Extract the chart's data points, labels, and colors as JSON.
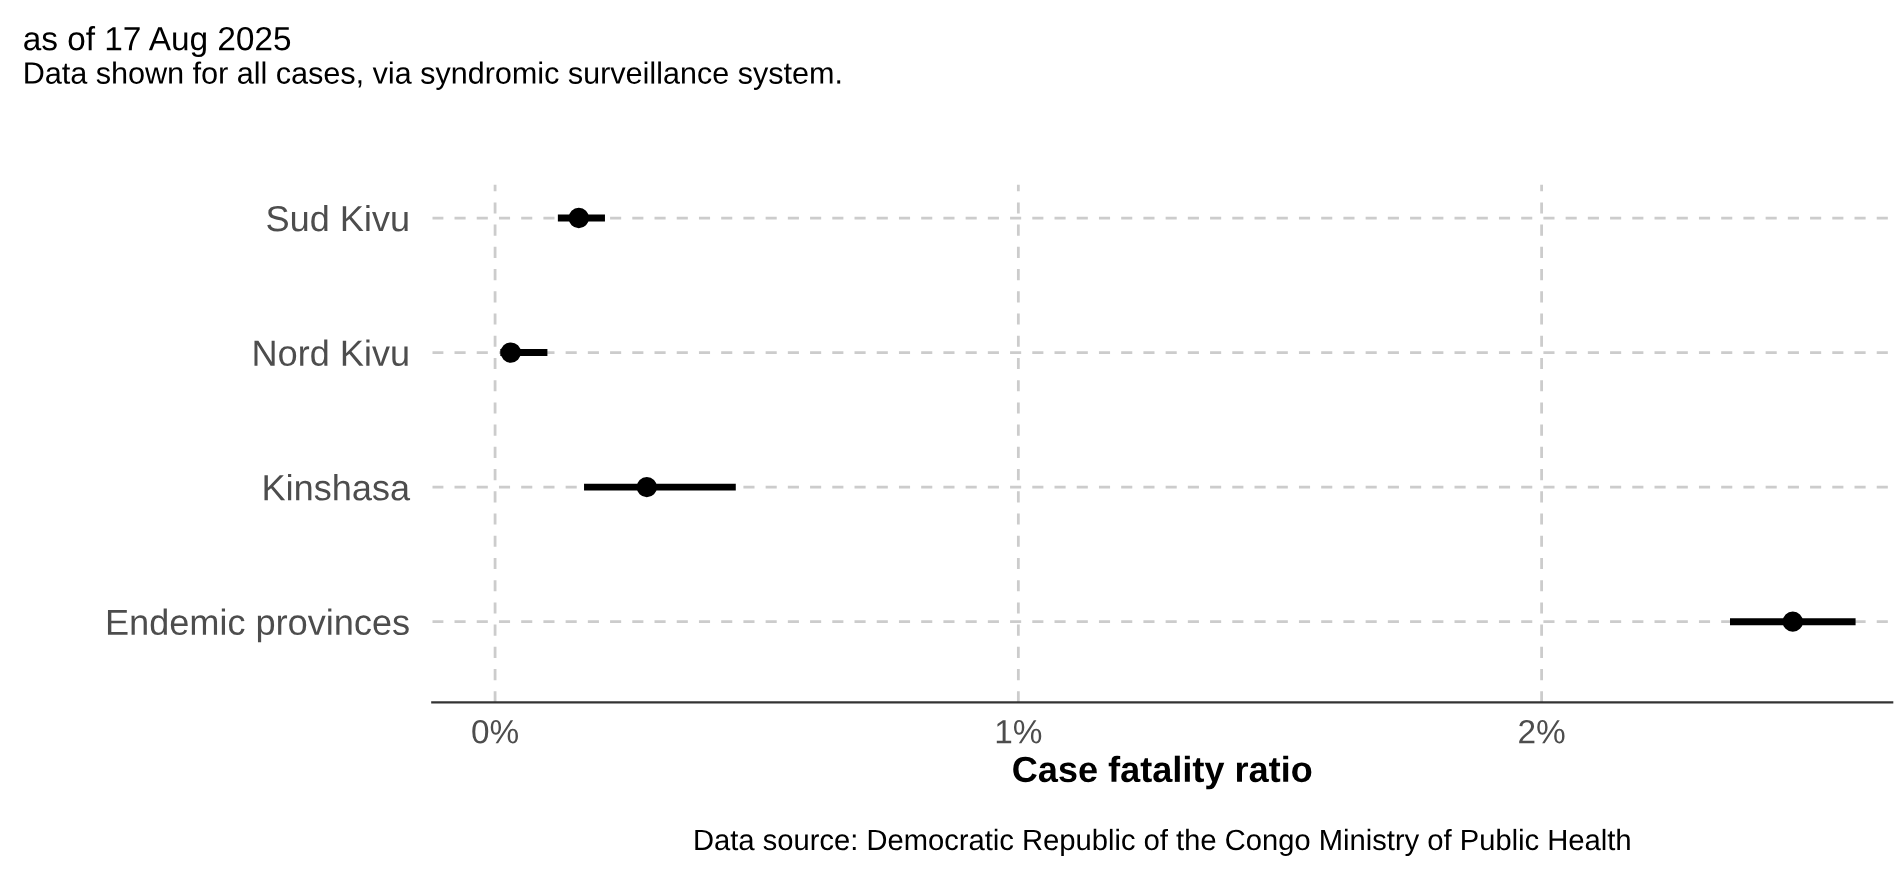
{
  "chart_data": {
    "type": "scatter",
    "orientation": "horizontal",
    "title": "as of 17 Aug 2025",
    "subtitle": "Data shown for all cases, via syndromic surveillance system.",
    "xlabel": "Case fatality ratio",
    "annotations": [
      "Data source: Democratic Republic of the Congo Ministry of Public Health"
    ],
    "categories": [
      "Sud Kivu",
      "Nord Kivu",
      "Kinshasa",
      "Endemic provinces"
    ],
    "values": [
      0.16,
      0.03,
      0.29,
      2.48
    ],
    "errors": [
      [
        0.12,
        0.21
      ],
      [
        0.01,
        0.1
      ],
      [
        0.17,
        0.46
      ],
      [
        2.36,
        2.6
      ]
    ],
    "color": "#000000",
    "xlim": [
      -0.12,
      2.67
    ],
    "xticks": [
      {
        "value": 0,
        "label": "0%"
      },
      {
        "value": 1,
        "label": "1%"
      },
      {
        "value": 2,
        "label": "2%"
      }
    ],
    "grid": true,
    "marker": "circle"
  }
}
